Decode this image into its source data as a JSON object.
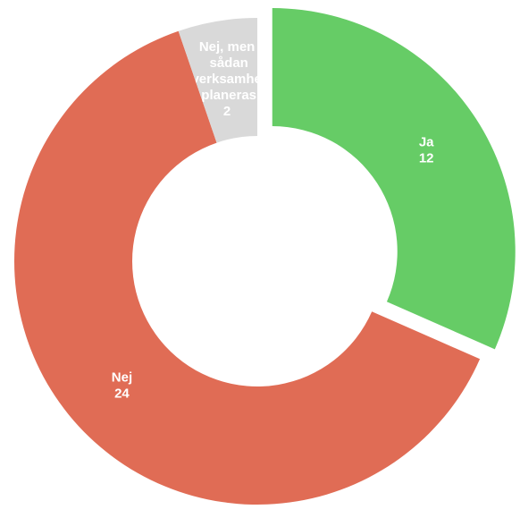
{
  "chart_data": {
    "type": "donut",
    "categories": [
      "Ja",
      "Nej",
      "Nej, men sådan verksamhet planeras"
    ],
    "values": [
      12,
      24,
      2
    ],
    "colors": [
      "#66cc66",
      "#e06c55",
      "#d9d9d9"
    ]
  }
}
